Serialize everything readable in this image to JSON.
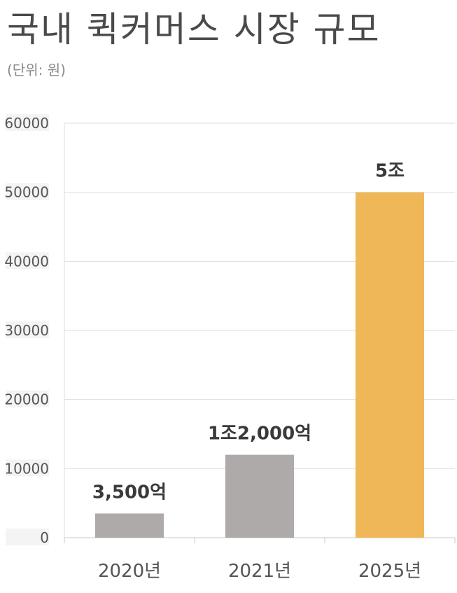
{
  "title": "국내 퀵커머스 시장 규모",
  "subtitle": "(단위: 원)",
  "chart_data": {
    "type": "bar",
    "categories": [
      "2020년",
      "2021년",
      "2025년"
    ],
    "values": [
      3500,
      12000,
      50000
    ],
    "data_labels": [
      "3,500억",
      "1조2,000억",
      "5조"
    ],
    "ylim": [
      0,
      60000
    ],
    "yticks": [
      0,
      10000,
      20000,
      30000,
      40000,
      50000,
      60000
    ],
    "grid": true,
    "legend": "none",
    "colors": [
      "#aeaaa9",
      "#aeaaa9",
      "#efb757"
    ]
  }
}
